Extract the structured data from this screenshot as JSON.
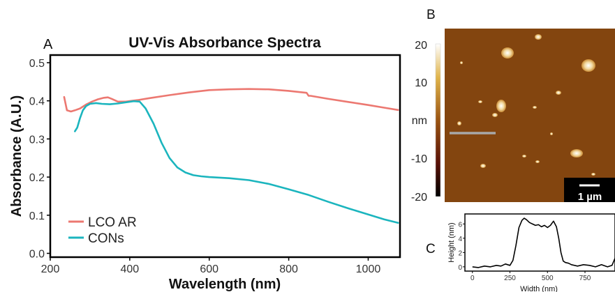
{
  "panel_labels": {
    "a": "A",
    "b": "B",
    "c": "C"
  },
  "colors": {
    "lco": "#ec7871",
    "cons": "#1bb5be",
    "afm_surface": "#8a4a12",
    "afm_particle": "#f2d9a0",
    "scale_box": "#000000",
    "profile_line": "#a8a8a8"
  },
  "chart_data": [
    {
      "type": "line",
      "title": "UV-Vis Absorbance Spectra",
      "xlabel": "Wavelength (nm)",
      "ylabel": "Absorbance (A.U.)",
      "xlim": [
        200,
        1080
      ],
      "ylim": [
        -0.01,
        0.52
      ],
      "xticks": [
        200,
        400,
        600,
        800,
        1000
      ],
      "yticks": [
        0.0,
        0.1,
        0.2,
        0.3,
        0.4,
        0.5
      ],
      "ytick_labels": [
        "0.0",
        "0.1",
        "0.2",
        "0.3",
        "0.4",
        "0.5"
      ],
      "grid": false,
      "legend": "bottom-left",
      "series": [
        {
          "name": "LCO AR",
          "color": "#ec7871",
          "x": [
            235,
            242,
            252,
            262,
            275,
            290,
            305,
            320,
            335,
            345,
            355,
            370,
            390,
            420,
            450,
            500,
            550,
            600,
            650,
            700,
            750,
            800,
            845,
            850,
            855,
            900,
            950,
            1000,
            1040,
            1075
          ],
          "y": [
            0.41,
            0.375,
            0.372,
            0.375,
            0.38,
            0.39,
            0.398,
            0.404,
            0.408,
            0.409,
            0.405,
            0.398,
            0.398,
            0.402,
            0.407,
            0.415,
            0.422,
            0.428,
            0.43,
            0.431,
            0.43,
            0.426,
            0.421,
            0.413,
            0.413,
            0.405,
            0.397,
            0.389,
            0.382,
            0.376
          ]
        },
        {
          "name": "CONs",
          "color": "#1bb5be",
          "x": [
            262,
            268,
            275,
            282,
            290,
            300,
            315,
            330,
            350,
            370,
            390,
            410,
            425,
            440,
            460,
            480,
            500,
            520,
            540,
            560,
            580,
            600,
            650,
            700,
            750,
            800,
            850,
            900,
            950,
            1000,
            1040,
            1075
          ],
          "y": [
            0.32,
            0.33,
            0.355,
            0.375,
            0.386,
            0.392,
            0.394,
            0.392,
            0.391,
            0.393,
            0.396,
            0.399,
            0.398,
            0.38,
            0.34,
            0.29,
            0.25,
            0.225,
            0.212,
            0.205,
            0.202,
            0.2,
            0.197,
            0.192,
            0.182,
            0.168,
            0.153,
            0.135,
            0.118,
            0.102,
            0.089,
            0.08
          ]
        }
      ]
    },
    {
      "type": "heatmap",
      "colorbar_label": "nm",
      "colorbar_range": [
        -20,
        20
      ],
      "colorbar_ticks": [
        "20",
        "10",
        "-10",
        "-20"
      ],
      "scale_bar_label": "1 µm"
    },
    {
      "type": "line",
      "xlabel": "Width (nm)",
      "ylabel": "Height (nm)",
      "xlim": [
        -50,
        950
      ],
      "ylim": [
        -0.6,
        7.4
      ],
      "xticks": [
        0,
        250,
        500,
        750
      ],
      "yticks": [
        0,
        2,
        4,
        6
      ],
      "grid": false,
      "series": [
        {
          "x": [
            0,
            40,
            80,
            120,
            160,
            190,
            220,
            250,
            270,
            290,
            310,
            330,
            345,
            360,
            380,
            400,
            420,
            440,
            460,
            480,
            500,
            520,
            540,
            560,
            575,
            590,
            605,
            620,
            640,
            660,
            700,
            740,
            780,
            820,
            860,
            900,
            930,
            950
          ],
          "y": [
            0,
            -0.1,
            0.1,
            0.0,
            0.2,
            0.1,
            0.4,
            0.2,
            0.9,
            3.0,
            5.5,
            6.5,
            6.8,
            6.6,
            6.2,
            6.0,
            5.8,
            5.9,
            5.6,
            5.8,
            5.5,
            5.8,
            6.4,
            5.6,
            4.0,
            2.0,
            0.8,
            0.6,
            0.5,
            0.3,
            0.1,
            0.3,
            0.2,
            0.0,
            0.3,
            0.0,
            0.2,
            1.2
          ]
        }
      ]
    }
  ]
}
